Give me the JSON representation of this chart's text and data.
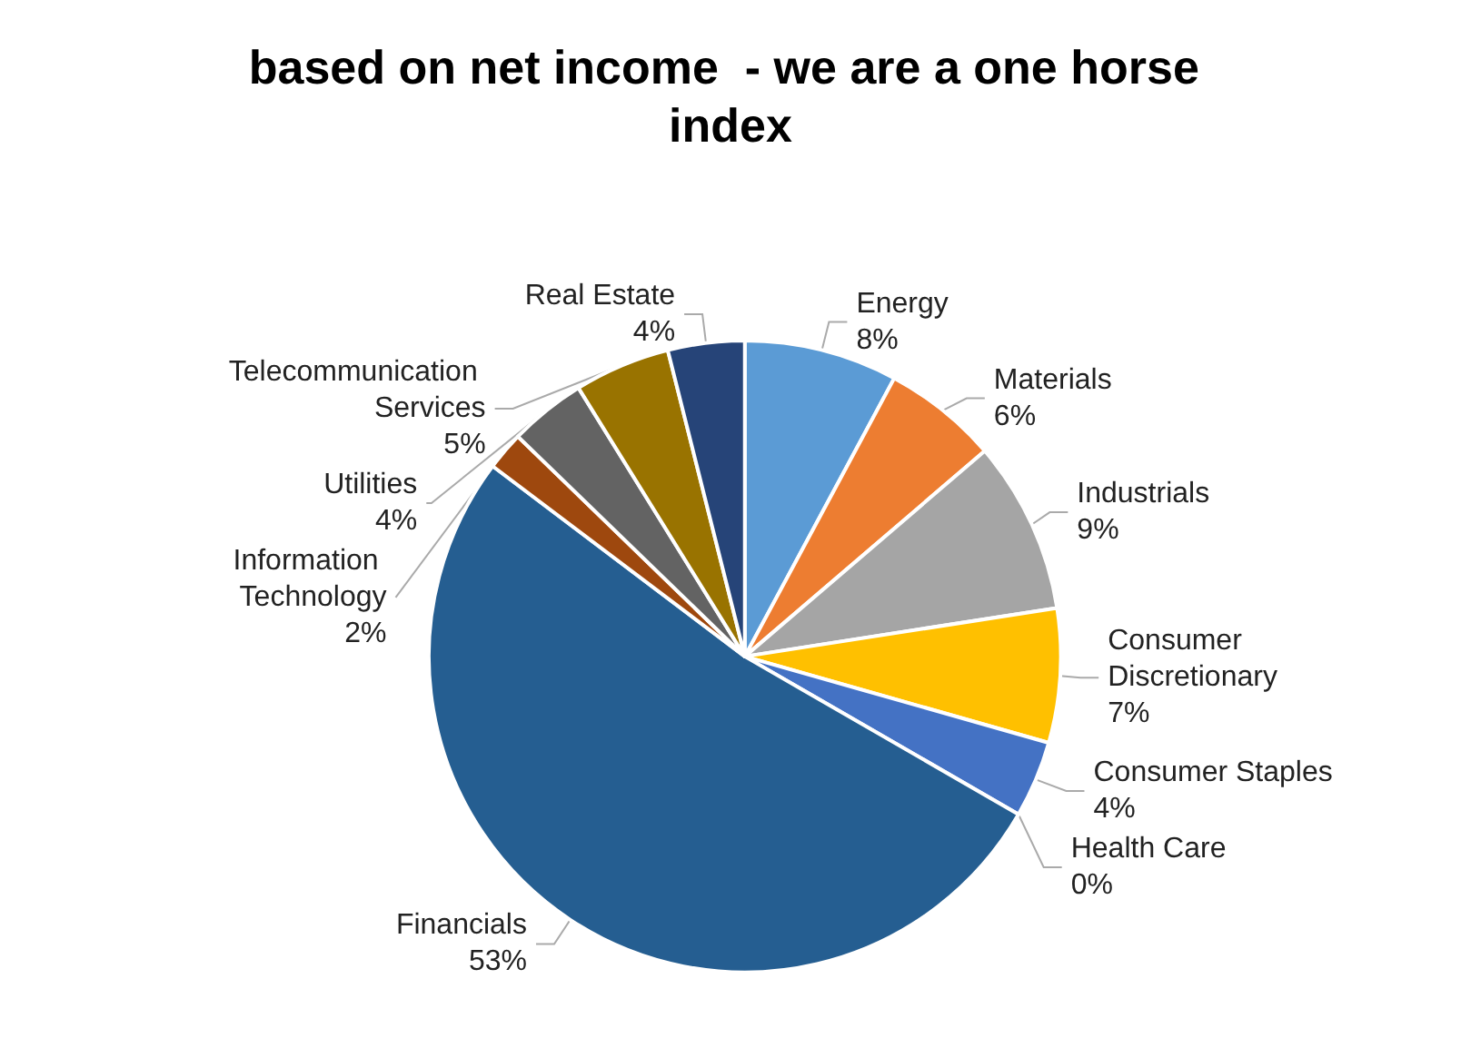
{
  "chart_data": {
    "type": "pie",
    "title": "based on net income  - we are a one horse index",
    "categories": [
      "Energy",
      "Materials",
      "Industrials",
      "Consumer Discretionary",
      "Consumer Staples",
      "Health Care",
      "Financials",
      "Information Technology",
      "Utilities",
      "Telecommunication Services",
      "Real Estate"
    ],
    "values": [
      8,
      6,
      9,
      7,
      4,
      0,
      53,
      2,
      4,
      5,
      4
    ],
    "colors": [
      "#5b9bd5",
      "#ed7d31",
      "#a5a5a5",
      "#ffc000",
      "#4472c4",
      "#70ad47",
      "#255e91",
      "#9e480e",
      "#636363",
      "#997300",
      "#264478"
    ],
    "value_labels": [
      "8%",
      "6%",
      "9%",
      "7%",
      "4%",
      "0%",
      "53%",
      "2%",
      "4%",
      "5%",
      "4%"
    ]
  }
}
